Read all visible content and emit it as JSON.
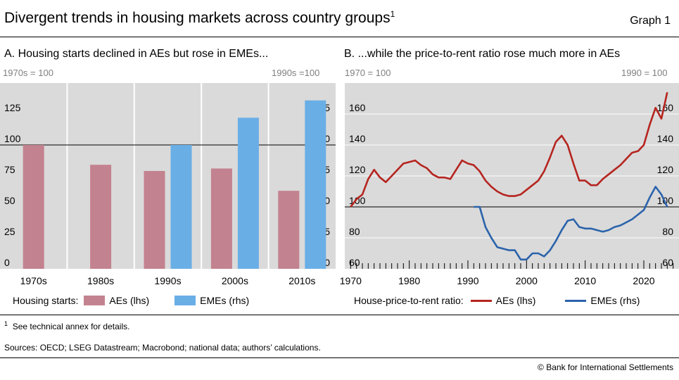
{
  "header": {
    "title": "Divergent trends in housing markets across country groups",
    "title_sup": "1",
    "graph_label": "Graph 1"
  },
  "footnote": {
    "marker": "1",
    "text": "See technical annex for details."
  },
  "sources": "Sources: OECD; LSEG Datastream; Macrobond; national data; authors’ calculations.",
  "copyright": "© Bank for International Settlements",
  "colors": {
    "ae": "#c3828f",
    "eme": "#6aaee6",
    "ae_line": "#b5251f",
    "eme_line": "#2b63ab",
    "plot_bg": "#dadada"
  },
  "chart_data": [
    {
      "type": "bar",
      "title": "A. Housing starts declined in AEs but rose in EMEs...",
      "left_unit": "1970s = 100",
      "right_unit": "1990s =100",
      "categories": [
        "1970s",
        "1980s",
        "1990s",
        "2000s",
        "2010s"
      ],
      "series": [
        {
          "name": "AEs (lhs)",
          "axis": "left",
          "values": [
            100,
            84,
            79,
            81,
            63
          ]
        },
        {
          "name": "EMEs (rhs)",
          "axis": "right",
          "values": [
            null,
            null,
            100,
            122,
            136
          ]
        }
      ],
      "ylim": [
        0,
        150
      ],
      "yticks": [
        0,
        25,
        50,
        75,
        100,
        125
      ],
      "reference_line": 100,
      "legend": {
        "label": "Housing starts:",
        "position": "bottom"
      },
      "grid": true
    },
    {
      "type": "line",
      "title": "B. ...while the price-to-rent ratio rose much more in AEs",
      "left_unit": "1970 = 100",
      "right_unit": "1990 = 100",
      "xlim": [
        1969,
        2026
      ],
      "xticks": [
        1970,
        1980,
        1990,
        2000,
        2010,
        2020
      ],
      "ylim": [
        60,
        180
      ],
      "yticks": [
        60,
        80,
        100,
        120,
        140,
        160
      ],
      "reference_line": 100,
      "legend": {
        "label": "House-price-to-rent ratio:",
        "position": "bottom"
      },
      "grid": true,
      "series": [
        {
          "name": "AEs (lhs)",
          "axis": "left",
          "x": [
            1970,
            1971,
            1972,
            1973,
            1974,
            1975,
            1976,
            1977,
            1978,
            1979,
            1980,
            1981,
            1982,
            1983,
            1984,
            1985,
            1986,
            1987,
            1988,
            1989,
            1990,
            1991,
            1992,
            1993,
            1994,
            1995,
            1996,
            1997,
            1998,
            1999,
            2000,
            2001,
            2002,
            2003,
            2004,
            2005,
            2006,
            2007,
            2008,
            2009,
            2010,
            2011,
            2012,
            2013,
            2014,
            2015,
            2016,
            2017,
            2018,
            2019,
            2020,
            2021,
            2022,
            2023,
            2024,
            2025
          ],
          "y": [
            100,
            105,
            108,
            118,
            124,
            119,
            116,
            120,
            124,
            128,
            129,
            130,
            127,
            125,
            121,
            119,
            119,
            118,
            124,
            130,
            128,
            127,
            123,
            117,
            113,
            110,
            108,
            107,
            107,
            108,
            111,
            114,
            117,
            123,
            132,
            142,
            146,
            140,
            128,
            117,
            117,
            114,
            114,
            118,
            121,
            124,
            127,
            131,
            135,
            136,
            140,
            153,
            164,
            157,
            174,
            null
          ]
        },
        {
          "name": "EMEs (rhs)",
          "axis": "right",
          "x": [
            1990,
            1991,
            1992,
            1993,
            1994,
            1995,
            1996,
            1997,
            1998,
            1999,
            2000,
            2001,
            2002,
            2003,
            2004,
            2005,
            2006,
            2007,
            2008,
            2009,
            2010,
            2011,
            2012,
            2013,
            2014,
            2015,
            2016,
            2017,
            2018,
            2019,
            2020,
            2021,
            2022,
            2023,
            2024
          ],
          "y": [
            null,
            100,
            100,
            87,
            80,
            74,
            73,
            72,
            72,
            66,
            66,
            70,
            70,
            68,
            72,
            78,
            85,
            91,
            92,
            87,
            86,
            86,
            85,
            84,
            85,
            87,
            88,
            90,
            92,
            95,
            98,
            106,
            113,
            108,
            100
          ]
        }
      ]
    }
  ]
}
